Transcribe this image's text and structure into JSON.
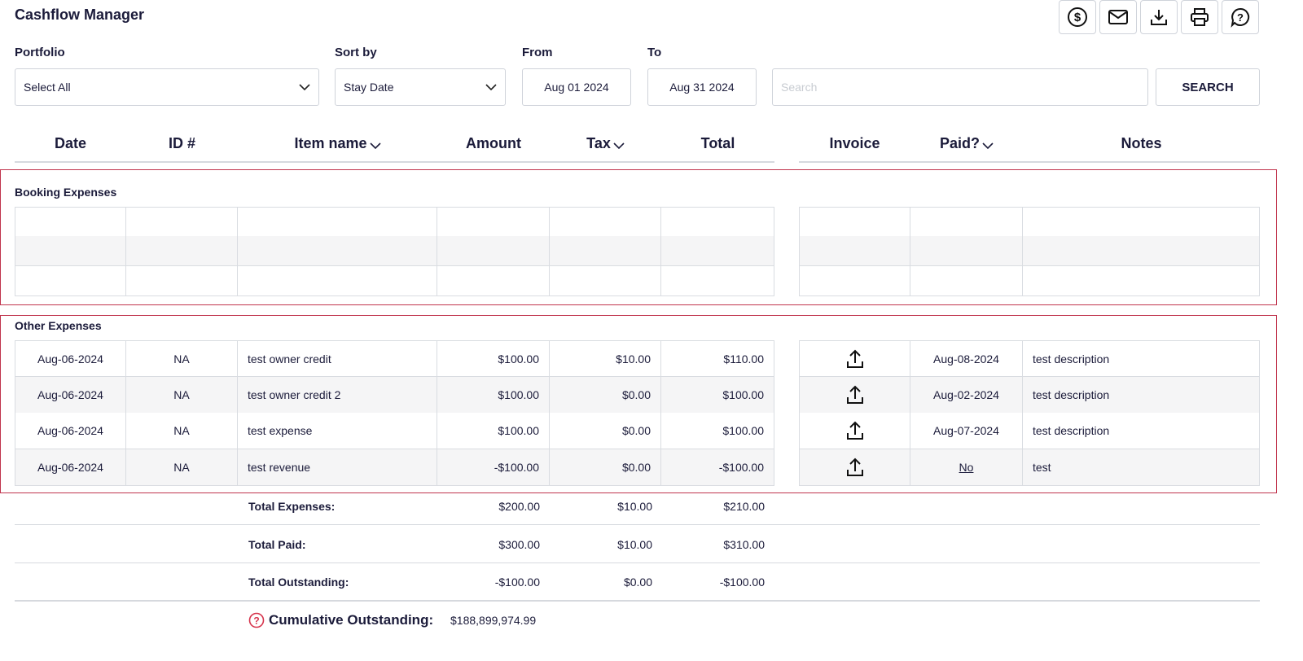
{
  "header": {
    "title": "Cashflow Manager"
  },
  "filters": {
    "portfolio": {
      "label": "Portfolio",
      "value": "Select All"
    },
    "sort_by": {
      "label": "Sort by",
      "value": "Stay Date"
    },
    "from": {
      "label": "From",
      "value": "Aug 01 2024"
    },
    "to": {
      "label": "To",
      "value": "Aug 31 2024"
    },
    "search_placeholder": "Search",
    "search_button": "SEARCH"
  },
  "columns": [
    "Date",
    "ID #",
    "Item name",
    "Amount",
    "Tax",
    "Total",
    "Invoice",
    "Paid?",
    "Notes"
  ],
  "sections": [
    {
      "title": "Booking Expenses"
    },
    {
      "title": "Other Expenses",
      "rows": [
        {
          "date": "Aug-06-2024",
          "id": "NA",
          "item": "test owner credit",
          "amount": "$100.00",
          "tax": "$10.00",
          "total": "$110.00",
          "paid": "Aug-08-2024",
          "notes": "test description"
        },
        {
          "date": "Aug-06-2024",
          "id": "NA",
          "item": "test owner credit 2",
          "amount": "$100.00",
          "tax": "$0.00",
          "total": "$100.00",
          "paid": "Aug-02-2024",
          "notes": "test description"
        },
        {
          "date": "Aug-06-2024",
          "id": "NA",
          "item": "test expense",
          "amount": "$100.00",
          "tax": "$0.00",
          "total": "$100.00",
          "paid": "Aug-07-2024",
          "notes": "test description"
        },
        {
          "date": "Aug-06-2024",
          "id": "NA",
          "item": "test revenue",
          "amount": "-$100.00",
          "tax": "$0.00",
          "total": "-$100.00",
          "paid": "No",
          "notes": "test"
        }
      ]
    }
  ],
  "totals": [
    {
      "label": "Total Expenses:",
      "amount": "$200.00",
      "tax": "$10.00",
      "total": "$210.00"
    },
    {
      "label": "Total Paid:",
      "amount": "$300.00",
      "tax": "$10.00",
      "total": "$310.00"
    },
    {
      "label": "Total Outstanding:",
      "amount": "-$100.00",
      "tax": "$0.00",
      "total": "-$100.00"
    }
  ],
  "cumulative": {
    "label": "Cumulative Outstanding:",
    "value": "$188,899,974.99"
  }
}
